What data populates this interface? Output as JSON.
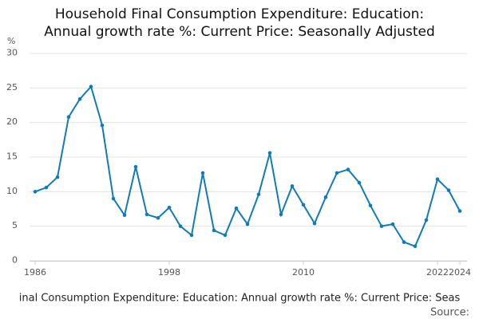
{
  "chart_data": {
    "type": "line",
    "title": [
      "Household Final Consumption Expenditure: Education:",
      "Annual growth rate %: Current Price: Seasonally Adjusted"
    ],
    "y_unit": "%",
    "x_label": "inal Consumption Expenditure: Education: Annual growth rate %: Current Price: Seas",
    "source": "Source:",
    "x": [
      1986,
      1987,
      1988,
      1989,
      1990,
      1991,
      1992,
      1993,
      1994,
      1995,
      1996,
      1997,
      1998,
      1999,
      2000,
      2001,
      2002,
      2003,
      2004,
      2005,
      2006,
      2007,
      2008,
      2009,
      2010,
      2011,
      2012,
      2013,
      2014,
      2015,
      2016,
      2017,
      2018,
      2019,
      2020,
      2021,
      2022,
      2023,
      2024
    ],
    "series": [
      {
        "name": "Annual growth rate",
        "color": "#0f7cb6",
        "values": [
          10.0,
          10.6,
          12.1,
          20.8,
          23.4,
          25.2,
          19.6,
          9.0,
          6.6,
          13.6,
          6.7,
          6.2,
          7.7,
          5.0,
          3.7,
          12.7,
          4.4,
          3.7,
          7.6,
          5.3,
          9.6,
          15.6,
          6.7,
          10.8,
          8.1,
          5.4,
          9.2,
          12.7,
          13.2,
          11.3,
          8.0,
          5.0,
          5.3,
          2.7,
          2.1,
          5.9,
          11.8,
          10.2,
          7.2
        ]
      }
    ],
    "xlim": [
      1986,
      2024
    ],
    "xticks": [
      1986,
      1998,
      2010,
      2022,
      2024
    ],
    "ylim": [
      0,
      30
    ],
    "yticks": [
      0,
      5,
      10,
      15,
      20,
      25,
      30
    ],
    "grid": true
  }
}
